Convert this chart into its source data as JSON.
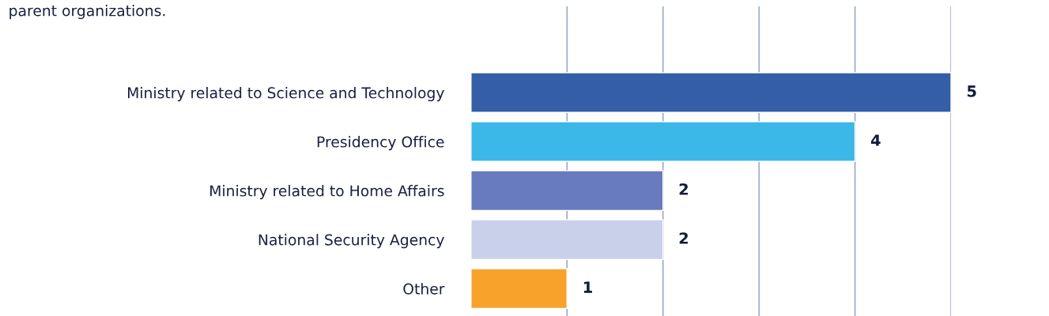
{
  "chart_data": {
    "type": "bar",
    "orientation": "horizontal",
    "title": "parent organizations.",
    "categories": [
      "Ministry related to Science and Technology",
      "Presidency Office",
      "Ministry related to Home Affairs",
      "National Security Agency",
      "Other"
    ],
    "values": [
      5,
      4,
      2,
      2,
      1
    ],
    "colors": [
      "#345fa8",
      "#3bb8e8",
      "#687bbf",
      "#c9d1ea",
      "#f8a22b"
    ],
    "xlim": [
      0,
      5
    ],
    "xticks": [
      {
        "value": 1,
        "label": null
      },
      {
        "value": 2,
        "label": null
      },
      {
        "value": 3,
        "label": null
      },
      {
        "value": 4,
        "label": null
      },
      {
        "value": 5,
        "label": null
      }
    ],
    "tick_labels": "y",
    "grid": "x",
    "data_labels": true,
    "legend": false
  }
}
